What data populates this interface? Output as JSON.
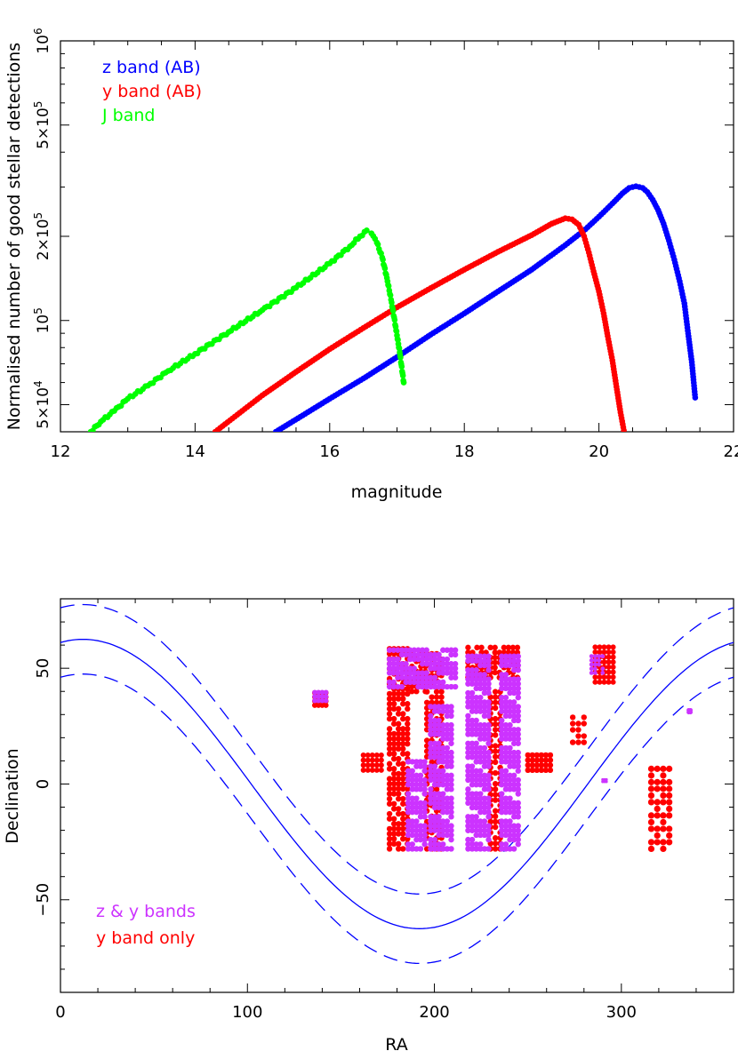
{
  "chart_data": [
    {
      "type": "scatter",
      "title": "",
      "xlabel": "magnitude",
      "ylabel": "Normalised number of good stellar detections",
      "xlim": [
        12,
        22
      ],
      "ylim": [
        40000,
        1000000
      ],
      "yscale": "log",
      "grid": false,
      "legend": "top-left",
      "x_ticks": [
        "12",
        "14",
        "16",
        "18",
        "20",
        "22"
      ],
      "y_ticks": [
        {
          "value": 50000,
          "mant": "5×10",
          "exp": "4"
        },
        {
          "value": 100000,
          "mant": "10",
          "exp": "5"
        },
        {
          "value": 200000,
          "mant": "2×10",
          "exp": "5"
        },
        {
          "value": 500000,
          "mant": "5×10",
          "exp": "5"
        },
        {
          "value": 1000000,
          "mant": "10",
          "exp": "6"
        }
      ],
      "series": [
        {
          "name": "z band (AB)",
          "color": "#0000ff",
          "points": [
            [
              15.2,
              40000
            ],
            [
              15.6,
              45800
            ],
            [
              16.0,
              52500
            ],
            [
              16.5,
              62000
            ],
            [
              17.0,
              74000
            ],
            [
              17.5,
              89000
            ],
            [
              18.0,
              106000
            ],
            [
              18.5,
              127000
            ],
            [
              19.0,
              152000
            ],
            [
              19.5,
              186000
            ],
            [
              19.8,
              212000
            ],
            [
              20.0,
              235000
            ],
            [
              20.2,
              262000
            ],
            [
              20.35,
              285000
            ],
            [
              20.45,
              298000
            ],
            [
              20.55,
              302000
            ],
            [
              20.65,
              298000
            ],
            [
              20.72,
              288000
            ],
            [
              20.8,
              270000
            ],
            [
              20.88,
              248000
            ],
            [
              20.96,
              222000
            ],
            [
              21.04,
              193000
            ],
            [
              21.12,
              165000
            ],
            [
              21.2,
              138000
            ],
            [
              21.27,
              115000
            ],
            [
              21.32,
              92000
            ],
            [
              21.38,
              71000
            ],
            [
              21.43,
              53000
            ]
          ]
        },
        {
          "name": "y band (AB)",
          "color": "#ff0000",
          "points": [
            [
              14.3,
              40000
            ],
            [
              14.7,
              47500
            ],
            [
              15.0,
              54000
            ],
            [
              15.5,
              65500
            ],
            [
              16.0,
              79000
            ],
            [
              16.5,
              94000
            ],
            [
              17.0,
              111500
            ],
            [
              17.5,
              130500
            ],
            [
              18.0,
              152000
            ],
            [
              18.5,
              176000
            ],
            [
              19.0,
              202000
            ],
            [
              19.3,
              222000
            ],
            [
              19.5,
              232000
            ],
            [
              19.6,
              230000
            ],
            [
              19.7,
              220000
            ],
            [
              19.78,
              200000
            ],
            [
              19.85,
              175000
            ],
            [
              19.92,
              150000
            ],
            [
              20.0,
              127000
            ],
            [
              20.07,
              106000
            ],
            [
              20.13,
              88000
            ],
            [
              20.2,
              72000
            ],
            [
              20.26,
              58000
            ],
            [
              20.32,
              47000
            ],
            [
              20.37,
              40500
            ]
          ]
        },
        {
          "name": "J band",
          "color": "#00ff00",
          "points": [
            [
              12.45,
              40000
            ],
            [
              12.6,
              43500
            ],
            [
              12.8,
              47500
            ],
            [
              13.0,
              52500
            ],
            [
              13.3,
              58500
            ],
            [
              13.6,
              66000
            ],
            [
              14.0,
              76000
            ],
            [
              14.5,
              91000
            ],
            [
              15.0,
              109000
            ],
            [
              15.5,
              131000
            ],
            [
              16.0,
              160000
            ],
            [
              16.3,
              184000
            ],
            [
              16.45,
              200000
            ],
            [
              16.55,
              210000
            ],
            [
              16.62,
              205000
            ],
            [
              16.7,
              190000
            ],
            [
              16.78,
              168000
            ],
            [
              16.85,
              142000
            ],
            [
              16.92,
              116000
            ],
            [
              16.98,
              95000
            ],
            [
              17.04,
              77000
            ],
            [
              17.1,
              60000
            ]
          ]
        }
      ]
    },
    {
      "type": "scatter",
      "title": "",
      "xlabel": "RA",
      "ylabel": "Declination",
      "xlim": [
        0,
        360
      ],
      "ylim": [
        -90,
        80
      ],
      "grid": false,
      "legend": "bottom-left",
      "x_ticks": [
        "0",
        "100",
        "200",
        "300"
      ],
      "y_ticks": [
        "−50",
        "0",
        "50"
      ],
      "series": [
        {
          "name": "z & y bands",
          "color": "#cc33ff"
        },
        {
          "name": "y band only",
          "color": "#ff0000"
        }
      ],
      "lines": [
        {
          "style": "solid",
          "color": "#0000ff",
          "offset": 0
        },
        {
          "style": "dashed",
          "color": "#0000ff",
          "offset": 15
        },
        {
          "style": "dashed",
          "color": "#0000ff",
          "offset": -15
        }
      ]
    }
  ]
}
